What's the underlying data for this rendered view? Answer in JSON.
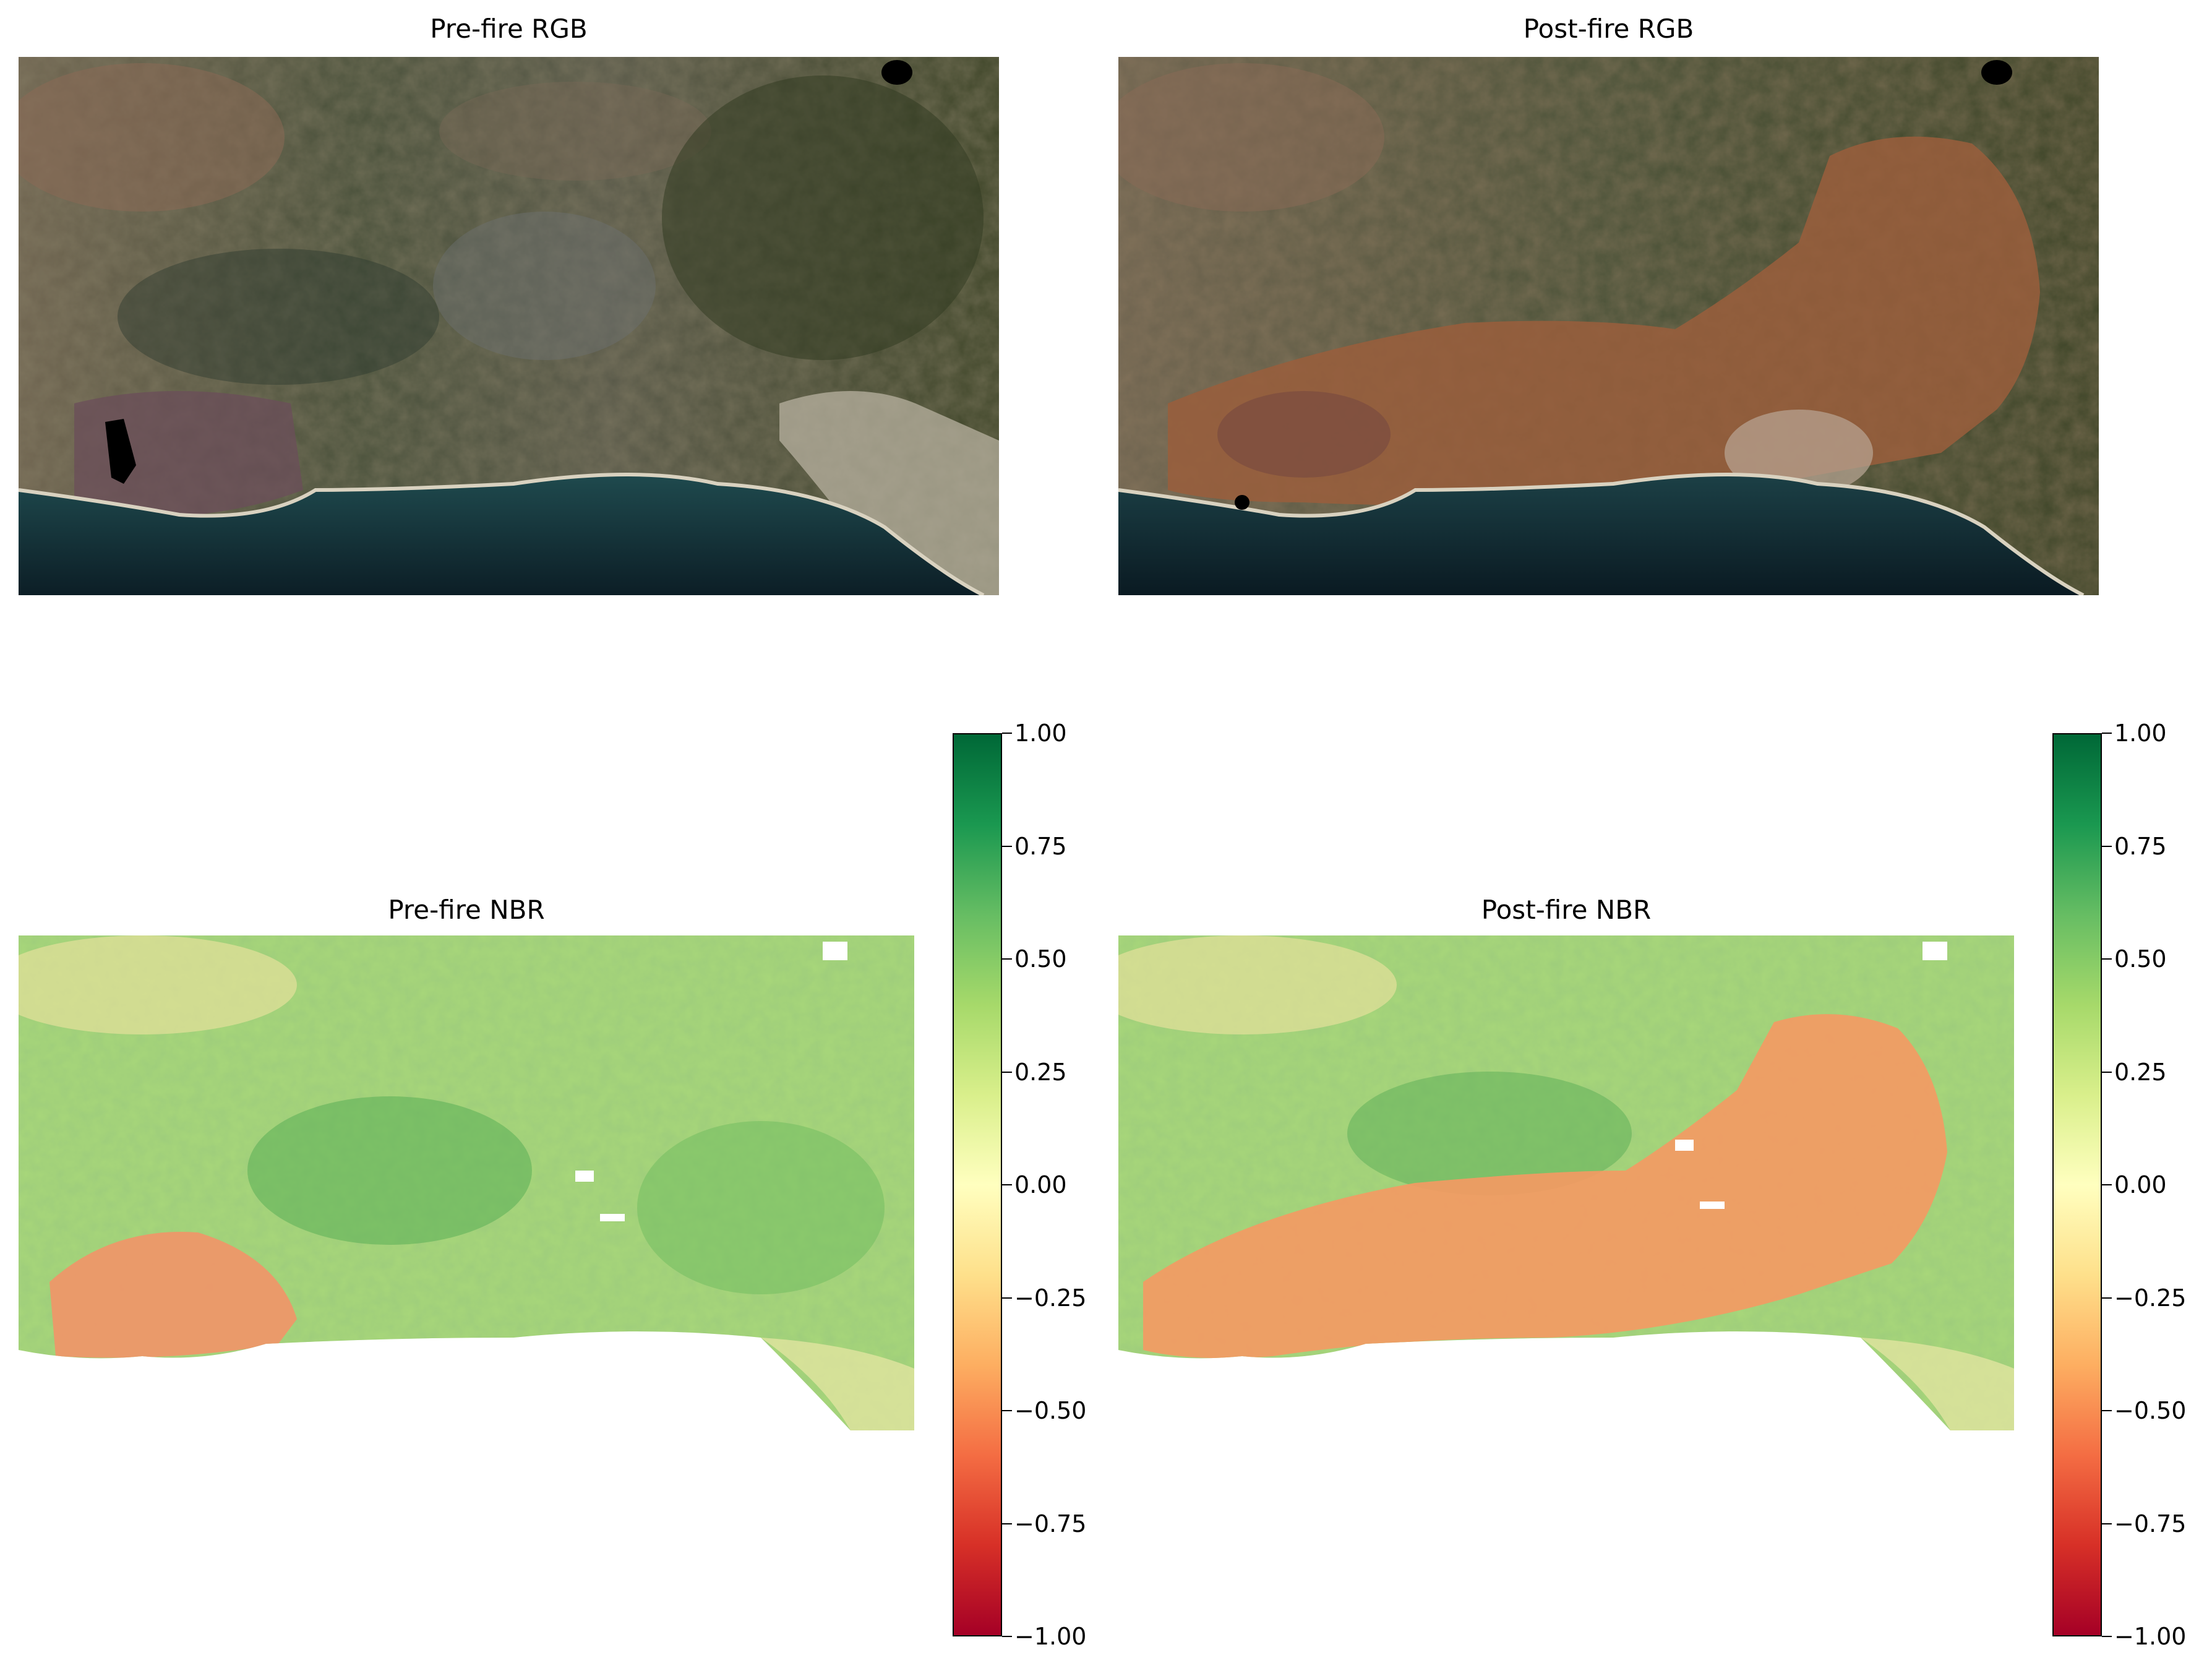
{
  "panels": {
    "pre_rgb": {
      "title": "Pre-fire RGB"
    },
    "post_rgb": {
      "title": "Post-fire RGB"
    },
    "pre_nbr": {
      "title": "Pre-fire NBR"
    },
    "post_nbr": {
      "title": "Post-fire NBR"
    }
  },
  "colorbar": {
    "colormap": "RdYlGn",
    "range": [
      -1.0,
      1.0
    ],
    "ticks": [
      "1.00",
      "0.75",
      "0.50",
      "0.25",
      "0.00",
      "−0.25",
      "−0.50",
      "−0.75",
      "−1.00"
    ]
  },
  "colors": {
    "ocean": "#0f2a33",
    "vegetation": "#3f4a2a",
    "burn_scar_rgb": "#8a5a3e",
    "nbr_healthy": "#86c66a",
    "nbr_burned": "#f08a55"
  }
}
